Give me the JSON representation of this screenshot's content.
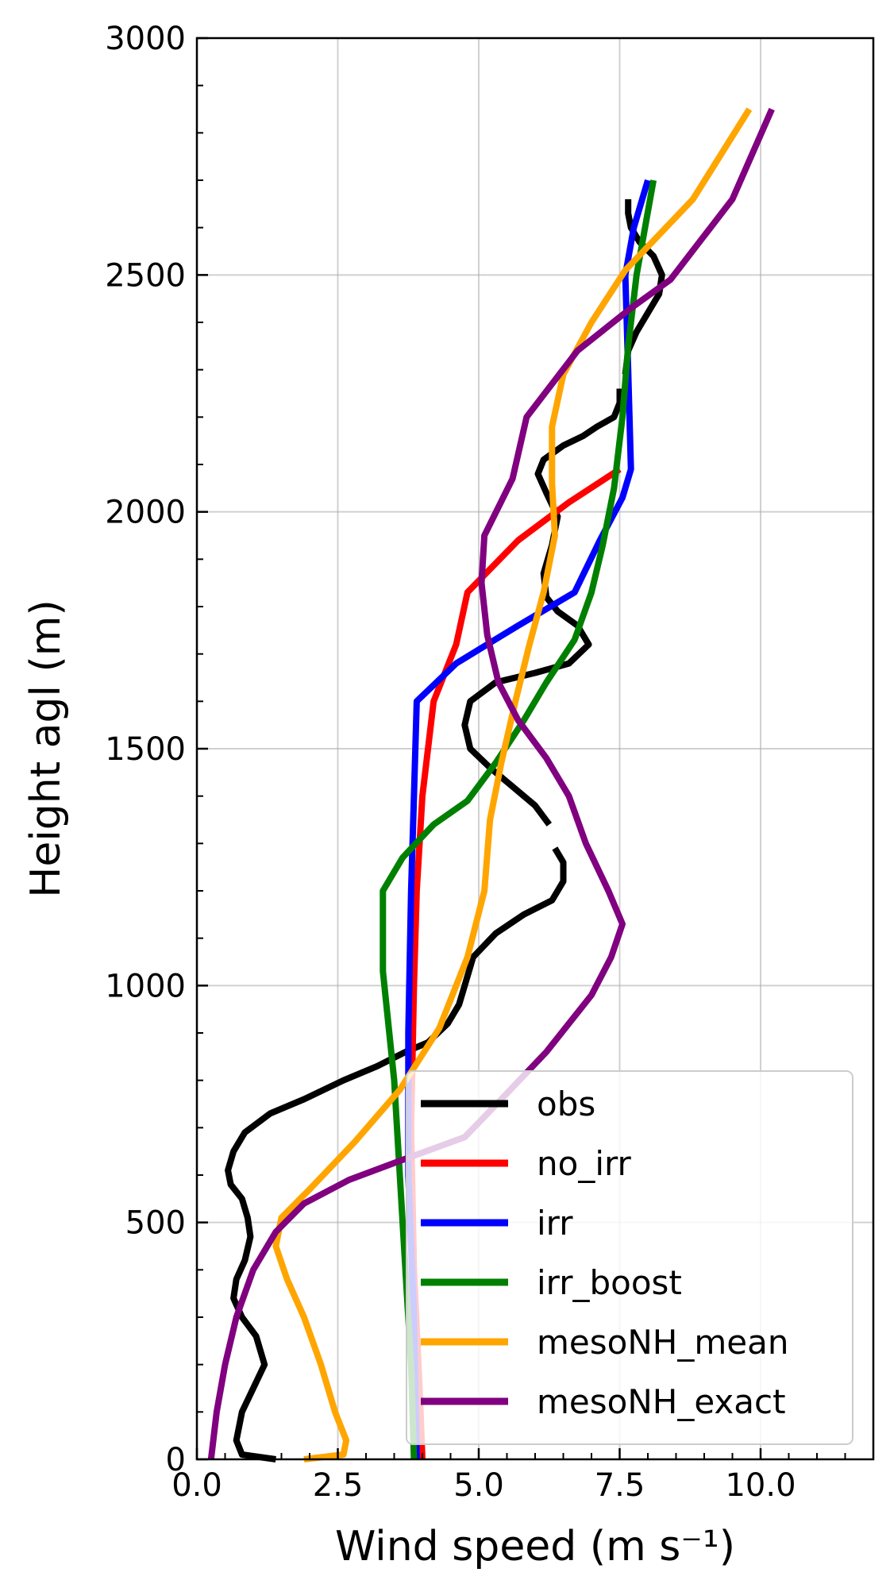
{
  "chart_data": {
    "type": "line",
    "title": "",
    "xlabel": "Wind speed (m s⁻¹)",
    "ylabel": "Height agl (m)",
    "xlim": [
      0,
      12
    ],
    "ylim": [
      0,
      3000
    ],
    "xticks": [
      0,
      2.5,
      5,
      7.5,
      10
    ],
    "xtick_labels": [
      "0.0",
      "2.5",
      "5.0",
      "7.5",
      "10.0"
    ],
    "x_minor_step": 0.5,
    "yticks": [
      0,
      500,
      1000,
      1500,
      2000,
      2500,
      3000
    ],
    "ytick_labels": [
      "0",
      "500",
      "1000",
      "1500",
      "2000",
      "2500",
      "3000"
    ],
    "y_minor_step": 100,
    "grid": true,
    "legend_position": "lower-right",
    "series": [
      {
        "name": "obs",
        "color": "#000000",
        "segments": [
          [
            [
              1.4,
              0
            ],
            [
              0.8,
              10
            ],
            [
              0.7,
              40
            ],
            [
              0.8,
              100
            ],
            [
              1.0,
              150
            ],
            [
              1.2,
              200
            ],
            [
              1.05,
              260
            ],
            [
              0.8,
              300
            ],
            [
              0.65,
              340
            ],
            [
              0.7,
              380
            ],
            [
              0.85,
              420
            ],
            [
              0.95,
              470
            ],
            [
              0.9,
              510
            ],
            [
              0.8,
              550
            ],
            [
              0.6,
              580
            ],
            [
              0.55,
              610
            ],
            [
              0.65,
              650
            ],
            [
              0.85,
              690
            ],
            [
              1.3,
              730
            ],
            [
              1.9,
              760
            ],
            [
              2.6,
              800
            ],
            [
              3.2,
              830
            ],
            [
              3.7,
              860
            ],
            [
              4.1,
              880
            ],
            [
              4.45,
              920
            ],
            [
              4.65,
              960
            ],
            [
              4.75,
              1000
            ],
            [
              4.9,
              1060
            ],
            [
              5.3,
              1110
            ],
            [
              5.8,
              1150
            ],
            [
              6.3,
              1180
            ],
            [
              6.5,
              1220
            ],
            [
              6.5,
              1260
            ],
            [
              6.35,
              1290
            ]
          ],
          [
            [
              6.25,
              1340
            ],
            [
              6.0,
              1380
            ],
            [
              5.6,
              1420
            ],
            [
              5.2,
              1460
            ],
            [
              4.85,
              1500
            ],
            [
              4.75,
              1550
            ],
            [
              4.85,
              1600
            ],
            [
              5.3,
              1640
            ],
            [
              6.0,
              1660
            ],
            [
              6.6,
              1680
            ],
            [
              6.95,
              1720
            ],
            [
              6.75,
              1760
            ],
            [
              6.4,
              1790
            ],
            [
              6.2,
              1820
            ],
            [
              6.15,
              1870
            ],
            [
              6.3,
              1930
            ],
            [
              6.4,
              1990
            ],
            [
              6.2,
              2040
            ],
            [
              6.05,
              2080
            ],
            [
              6.15,
              2110
            ],
            [
              6.5,
              2140
            ],
            [
              6.85,
              2160
            ],
            [
              7.1,
              2180
            ],
            [
              7.4,
              2200
            ],
            [
              7.5,
              2230
            ],
            [
              7.5,
              2260
            ]
          ],
          [
            [
              7.6,
              2290
            ],
            [
              7.65,
              2340
            ],
            [
              7.8,
              2380
            ],
            [
              8.0,
              2420
            ],
            [
              8.2,
              2460
            ],
            [
              8.25,
              2500
            ],
            [
              8.1,
              2540
            ],
            [
              7.85,
              2570
            ],
            [
              7.7,
              2600
            ],
            [
              7.65,
              2630
            ],
            [
              7.65,
              2660
            ]
          ]
        ]
      },
      {
        "name": "no_irr",
        "color": "#ff0000",
        "segments": [
          [
            [
              4.0,
              0
            ],
            [
              3.95,
              150
            ],
            [
              3.85,
              400
            ],
            [
              3.8,
              700
            ],
            [
              3.85,
              1000
            ],
            [
              3.9,
              1200
            ],
            [
              4.0,
              1400
            ],
            [
              4.2,
              1600
            ],
            [
              4.6,
              1720
            ],
            [
              4.8,
              1830
            ],
            [
              5.7,
              1940
            ],
            [
              6.6,
              2020
            ],
            [
              7.5,
              2090
            ]
          ]
        ]
      },
      {
        "name": "irr",
        "color": "#0000ff",
        "segments": [
          [
            [
              3.9,
              0
            ],
            [
              3.85,
              300
            ],
            [
              3.75,
              600
            ],
            [
              3.75,
              900
            ],
            [
              3.8,
              1200
            ],
            [
              3.85,
              1400
            ],
            [
              3.9,
              1600
            ],
            [
              4.6,
              1680
            ],
            [
              5.7,
              1760
            ],
            [
              6.7,
              1830
            ],
            [
              7.15,
              1940
            ],
            [
              7.55,
              2030
            ],
            [
              7.7,
              2090
            ],
            [
              7.65,
              2300
            ],
            [
              7.6,
              2500
            ],
            [
              7.75,
              2600
            ],
            [
              8.0,
              2700
            ]
          ]
        ]
      },
      {
        "name": "irr_boost",
        "color": "#008000",
        "segments": [
          [
            [
              3.85,
              0
            ],
            [
              3.8,
              200
            ],
            [
              3.65,
              500
            ],
            [
              3.5,
              800
            ],
            [
              3.3,
              1030
            ],
            [
              3.3,
              1200
            ],
            [
              3.65,
              1270
            ],
            [
              4.2,
              1340
            ],
            [
              4.8,
              1390
            ],
            [
              5.3,
              1470
            ],
            [
              5.8,
              1560
            ],
            [
              6.2,
              1640
            ],
            [
              6.7,
              1730
            ],
            [
              7.0,
              1830
            ],
            [
              7.2,
              1930
            ],
            [
              7.4,
              2050
            ],
            [
              7.55,
              2200
            ],
            [
              7.65,
              2350
            ],
            [
              7.8,
              2500
            ],
            [
              8.1,
              2700
            ]
          ]
        ]
      },
      {
        "name": "mesoNH_mean",
        "color": "#ffa500",
        "segments": [
          [
            [
              1.9,
              0
            ],
            [
              2.6,
              10
            ],
            [
              2.65,
              40
            ],
            [
              2.45,
              100
            ],
            [
              2.2,
              200
            ],
            [
              1.9,
              300
            ],
            [
              1.6,
              380
            ],
            [
              1.4,
              450
            ],
            [
              1.5,
              510
            ],
            [
              2.0,
              570
            ],
            [
              2.8,
              670
            ],
            [
              3.6,
              780
            ],
            [
              4.3,
              910
            ],
            [
              4.8,
              1060
            ],
            [
              5.1,
              1200
            ],
            [
              5.2,
              1350
            ],
            [
              5.4,
              1470
            ],
            [
              5.65,
              1600
            ],
            [
              5.9,
              1720
            ],
            [
              6.15,
              1830
            ],
            [
              6.35,
              1950
            ],
            [
              6.3,
              2060
            ],
            [
              6.3,
              2180
            ],
            [
              6.5,
              2290
            ],
            [
              7.0,
              2400
            ],
            [
              7.6,
              2510
            ],
            [
              8.8,
              2660
            ],
            [
              9.8,
              2850
            ]
          ]
        ]
      },
      {
        "name": "mesoNH_exact",
        "color": "#800080",
        "segments": [
          [
            [
              0.25,
              0
            ],
            [
              0.35,
              100
            ],
            [
              0.5,
              200
            ],
            [
              0.7,
              300
            ],
            [
              1.0,
              400
            ],
            [
              1.4,
              480
            ],
            [
              1.9,
              540
            ],
            [
              2.7,
              590
            ],
            [
              3.6,
              630
            ],
            [
              4.75,
              680
            ],
            [
              5.4,
              760
            ],
            [
              6.2,
              860
            ],
            [
              7.0,
              980
            ],
            [
              7.35,
              1060
            ],
            [
              7.55,
              1130
            ],
            [
              7.3,
              1200
            ],
            [
              6.9,
              1300
            ],
            [
              6.6,
              1400
            ],
            [
              6.2,
              1480
            ],
            [
              5.7,
              1560
            ],
            [
              5.35,
              1640
            ],
            [
              5.15,
              1740
            ],
            [
              5.05,
              1850
            ],
            [
              5.1,
              1950
            ],
            [
              5.6,
              2070
            ],
            [
              5.85,
              2200
            ],
            [
              6.75,
              2340
            ],
            [
              7.7,
              2430
            ],
            [
              8.4,
              2490
            ],
            [
              9.5,
              2660
            ],
            [
              10.2,
              2850
            ]
          ]
        ]
      }
    ]
  }
}
